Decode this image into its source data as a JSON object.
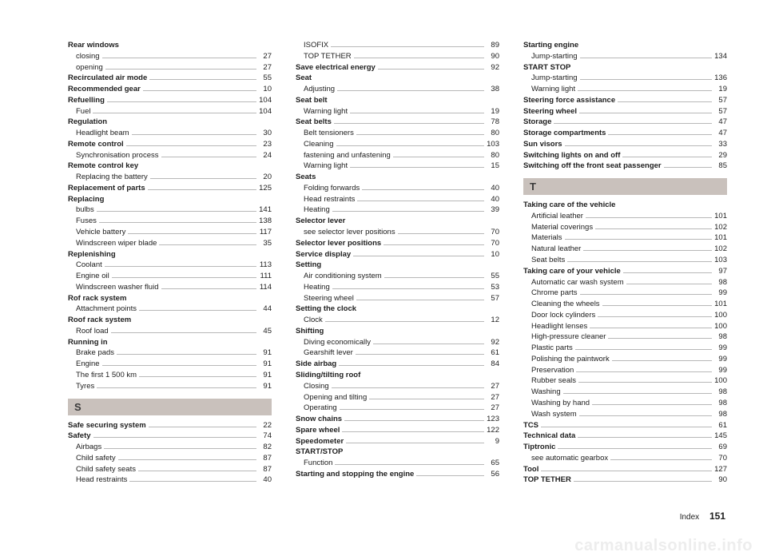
{
  "footer": {
    "label": "Index",
    "page": "151"
  },
  "watermark": "carmanualsonline.info",
  "letters": {
    "S": "S",
    "T": "T"
  },
  "col1": [
    {
      "t": "head",
      "l": "Rear windows"
    },
    {
      "t": "sub",
      "l": "closing",
      "p": "27"
    },
    {
      "t": "sub",
      "l": "opening",
      "p": "27"
    },
    {
      "t": "head",
      "l": "Recirculated air mode",
      "p": "55"
    },
    {
      "t": "head",
      "l": "Recommended gear",
      "p": "10"
    },
    {
      "t": "head",
      "l": "Refuelling",
      "p": "104"
    },
    {
      "t": "sub",
      "l": "Fuel",
      "p": "104"
    },
    {
      "t": "head",
      "l": "Regulation"
    },
    {
      "t": "sub",
      "l": "Headlight beam",
      "p": "30"
    },
    {
      "t": "head",
      "l": "Remote control",
      "p": "23"
    },
    {
      "t": "sub",
      "l": "Synchronisation process",
      "p": "24"
    },
    {
      "t": "head",
      "l": "Remote control key"
    },
    {
      "t": "sub",
      "l": "Replacing the battery",
      "p": "20"
    },
    {
      "t": "head",
      "l": "Replacement of parts",
      "p": "125"
    },
    {
      "t": "head",
      "l": "Replacing"
    },
    {
      "t": "sub",
      "l": "bulbs",
      "p": "141"
    },
    {
      "t": "sub",
      "l": "Fuses",
      "p": "138"
    },
    {
      "t": "sub",
      "l": "Vehicle battery",
      "p": "117"
    },
    {
      "t": "sub",
      "l": "Windscreen wiper blade",
      "p": "35"
    },
    {
      "t": "head",
      "l": "Replenishing"
    },
    {
      "t": "sub",
      "l": "Coolant",
      "p": "113"
    },
    {
      "t": "sub",
      "l": "Engine oil",
      "p": "111"
    },
    {
      "t": "sub",
      "l": "Windscreen washer fluid",
      "p": "114"
    },
    {
      "t": "head",
      "l": "Rof rack system"
    },
    {
      "t": "sub",
      "l": "Attachment points",
      "p": "44"
    },
    {
      "t": "head",
      "l": "Roof rack system"
    },
    {
      "t": "sub",
      "l": "Roof load",
      "p": "45"
    },
    {
      "t": "head",
      "l": "Running in"
    },
    {
      "t": "sub",
      "l": "Brake pads",
      "p": "91"
    },
    {
      "t": "sub",
      "l": "Engine",
      "p": "91"
    },
    {
      "t": "sub",
      "l": "The first 1 500 km",
      "p": "91"
    },
    {
      "t": "sub",
      "l": "Tyres",
      "p": "91"
    },
    {
      "t": "letter",
      "key": "S"
    },
    {
      "t": "head",
      "l": "Safe securing system",
      "p": "22"
    },
    {
      "t": "head",
      "l": "Safety",
      "p": "74"
    },
    {
      "t": "sub",
      "l": "Airbags",
      "p": "82"
    },
    {
      "t": "sub",
      "l": "Child safety",
      "p": "87"
    },
    {
      "t": "sub",
      "l": "Child safety seats",
      "p": "87"
    },
    {
      "t": "sub",
      "l": "Head restraints",
      "p": "40"
    }
  ],
  "col2": [
    {
      "t": "sub",
      "l": "ISOFIX",
      "p": "89"
    },
    {
      "t": "sub",
      "l": "TOP TETHER",
      "p": "90"
    },
    {
      "t": "head",
      "l": "Save electrical energy",
      "p": "92"
    },
    {
      "t": "head",
      "l": "Seat"
    },
    {
      "t": "sub",
      "l": "Adjusting",
      "p": "38"
    },
    {
      "t": "head",
      "l": "Seat belt"
    },
    {
      "t": "sub",
      "l": "Warning light",
      "p": "19"
    },
    {
      "t": "head",
      "l": "Seat belts",
      "p": "78"
    },
    {
      "t": "sub",
      "l": "Belt tensioners",
      "p": "80"
    },
    {
      "t": "sub",
      "l": "Cleaning",
      "p": "103"
    },
    {
      "t": "sub",
      "l": "fastening and unfastening",
      "p": "80"
    },
    {
      "t": "sub",
      "l": "Warning light",
      "p": "15"
    },
    {
      "t": "head",
      "l": "Seats"
    },
    {
      "t": "sub",
      "l": "Folding forwards",
      "p": "40"
    },
    {
      "t": "sub",
      "l": "Head restraints",
      "p": "40"
    },
    {
      "t": "sub",
      "l": "Heating",
      "p": "39"
    },
    {
      "t": "head",
      "l": "Selector lever"
    },
    {
      "t": "sub",
      "l": "see selector lever positions",
      "p": "70"
    },
    {
      "t": "head",
      "l": "Selector lever positions",
      "p": "70"
    },
    {
      "t": "head",
      "l": "Service display",
      "p": "10"
    },
    {
      "t": "head",
      "l": "Setting"
    },
    {
      "t": "sub",
      "l": "Air conditioning system",
      "p": "55"
    },
    {
      "t": "sub",
      "l": "Heating",
      "p": "53"
    },
    {
      "t": "sub",
      "l": "Steering wheel",
      "p": "57"
    },
    {
      "t": "head",
      "l": "Setting the clock"
    },
    {
      "t": "sub",
      "l": "Clock",
      "p": "12"
    },
    {
      "t": "head",
      "l": "Shifting"
    },
    {
      "t": "sub",
      "l": "Diving economically",
      "p": "92"
    },
    {
      "t": "sub",
      "l": "Gearshift lever",
      "p": "61"
    },
    {
      "t": "head",
      "l": "Side airbag",
      "p": "84"
    },
    {
      "t": "head",
      "l": "Sliding/tilting roof"
    },
    {
      "t": "sub",
      "l": "Closing",
      "p": "27"
    },
    {
      "t": "sub",
      "l": "Opening and tilting",
      "p": "27"
    },
    {
      "t": "sub",
      "l": "Operating",
      "p": "27"
    },
    {
      "t": "head",
      "l": "Snow chains",
      "p": "123"
    },
    {
      "t": "head",
      "l": "Spare wheel",
      "p": "122"
    },
    {
      "t": "head",
      "l": "Speedometer",
      "p": "9"
    },
    {
      "t": "head",
      "l": "START/STOP"
    },
    {
      "t": "sub",
      "l": "Function",
      "p": "65"
    },
    {
      "t": "head",
      "l": "Starting and stopping the engine",
      "p": "56"
    }
  ],
  "col3": [
    {
      "t": "head",
      "l": "Starting engine"
    },
    {
      "t": "sub",
      "l": "Jump-starting",
      "p": "134"
    },
    {
      "t": "head",
      "l": "START STOP"
    },
    {
      "t": "sub",
      "l": "Jump-starting",
      "p": "136"
    },
    {
      "t": "sub",
      "l": "Warning light",
      "p": "19"
    },
    {
      "t": "head",
      "l": "Steering force assistance",
      "p": "57"
    },
    {
      "t": "head",
      "l": "Steering wheel",
      "p": "57"
    },
    {
      "t": "head",
      "l": "Storage",
      "p": "47"
    },
    {
      "t": "head",
      "l": "Storage compartments",
      "p": "47"
    },
    {
      "t": "head",
      "l": "Sun visors",
      "p": "33"
    },
    {
      "t": "head",
      "l": "Switching lights on and off",
      "p": "29"
    },
    {
      "t": "head",
      "l": "Switching off the front seat passenger",
      "p": "85"
    },
    {
      "t": "letter",
      "key": "T"
    },
    {
      "t": "head",
      "l": "Taking care of the vehicle"
    },
    {
      "t": "sub",
      "l": "Artificial leather",
      "p": "101"
    },
    {
      "t": "sub",
      "l": "Material coverings",
      "p": "102"
    },
    {
      "t": "sub",
      "l": "Materials",
      "p": "101"
    },
    {
      "t": "sub",
      "l": "Natural leather",
      "p": "102"
    },
    {
      "t": "sub",
      "l": "Seat belts",
      "p": "103"
    },
    {
      "t": "head",
      "l": "Taking care of your vehicle",
      "p": "97"
    },
    {
      "t": "sub",
      "l": "Automatic car wash system",
      "p": "98"
    },
    {
      "t": "sub",
      "l": "Chrome parts",
      "p": "99"
    },
    {
      "t": "sub",
      "l": "Cleaning the wheels",
      "p": "101"
    },
    {
      "t": "sub",
      "l": "Door lock cylinders",
      "p": "100"
    },
    {
      "t": "sub",
      "l": "Headlight lenses",
      "p": "100"
    },
    {
      "t": "sub",
      "l": "High-pressure cleaner",
      "p": "98"
    },
    {
      "t": "sub",
      "l": "Plastic parts",
      "p": "99"
    },
    {
      "t": "sub",
      "l": "Polishing the paintwork",
      "p": "99"
    },
    {
      "t": "sub",
      "l": "Preservation",
      "p": "99"
    },
    {
      "t": "sub",
      "l": "Rubber seals",
      "p": "100"
    },
    {
      "t": "sub",
      "l": "Washing",
      "p": "98"
    },
    {
      "t": "sub",
      "l": "Washing by hand",
      "p": "98"
    },
    {
      "t": "sub",
      "l": "Wash system",
      "p": "98"
    },
    {
      "t": "head",
      "l": "TCS",
      "p": "61"
    },
    {
      "t": "head",
      "l": "Technical data",
      "p": "145"
    },
    {
      "t": "head",
      "l": "Tiptronic",
      "p": "69"
    },
    {
      "t": "sub",
      "l": "see automatic gearbox",
      "p": "70"
    },
    {
      "t": "head",
      "l": "Tool",
      "p": "127"
    },
    {
      "t": "head",
      "l": "TOP TETHER",
      "p": "90"
    }
  ]
}
